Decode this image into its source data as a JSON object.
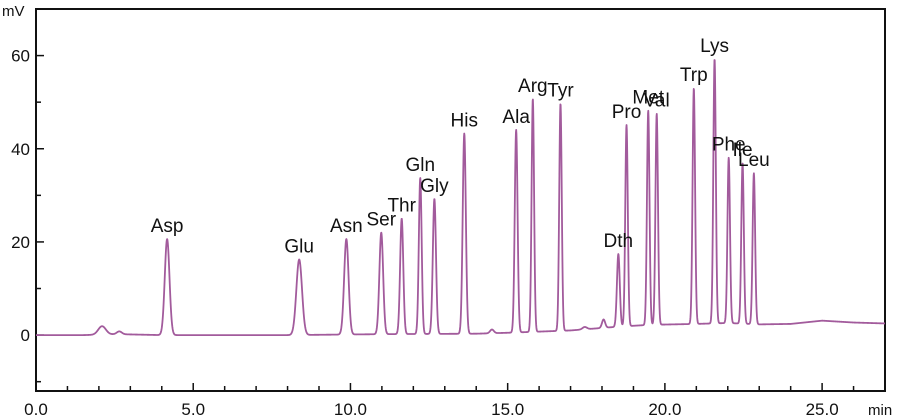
{
  "chart_data": {
    "type": "line",
    "title": "",
    "xlabel": "",
    "ylabel": "",
    "x_unit": "min",
    "y_unit": "mV",
    "xlim": [
      0,
      27.0
    ],
    "ylim": [
      -12,
      70
    ],
    "x_ticks": [
      {
        "value": 0,
        "label": "0.0"
      },
      {
        "value": 5,
        "label": "5.0"
      },
      {
        "value": 10,
        "label": "10.0"
      },
      {
        "value": 15,
        "label": "15.0"
      },
      {
        "value": 20,
        "label": "20.0"
      },
      {
        "value": 25,
        "label": "25.0"
      }
    ],
    "x_minor_step": 1,
    "y_ticks": [
      {
        "value": 0,
        "label": "0"
      },
      {
        "value": 20,
        "label": "20"
      },
      {
        "value": 40,
        "label": "40"
      },
      {
        "value": 60,
        "label": "60"
      }
    ],
    "y_minor_step": 10,
    "grid": false,
    "line_color": "#a25b9c",
    "baseline": {
      "points": [
        [
          0,
          0
        ],
        [
          1.5,
          0
        ],
        [
          2.6,
          0.2
        ],
        [
          4.0,
          0
        ],
        [
          8.0,
          0
        ],
        [
          11.0,
          0.2
        ],
        [
          14.0,
          0.3
        ],
        [
          15.0,
          0.5
        ],
        [
          17.0,
          1.0
        ],
        [
          18.5,
          1.8
        ],
        [
          19.5,
          2.2
        ],
        [
          21.0,
          2.4
        ],
        [
          22.0,
          2.6
        ],
        [
          23.0,
          2.3
        ],
        [
          24.0,
          2.4
        ],
        [
          25.0,
          3.1
        ],
        [
          26.0,
          2.7
        ],
        [
          27.0,
          2.5
        ]
      ]
    },
    "peaks": [
      {
        "name": "",
        "x": 2.1,
        "height": 1.8,
        "width": 0.12
      },
      {
        "name": "",
        "x": 2.65,
        "height": 0.6,
        "width": 0.08
      },
      {
        "name": "Asp",
        "x": 4.17,
        "height": 20.6,
        "width": 0.075
      },
      {
        "name": "Glu",
        "x": 8.37,
        "height": 16.2,
        "width": 0.09
      },
      {
        "name": "Asn",
        "x": 9.87,
        "height": 20.5,
        "width": 0.07
      },
      {
        "name": "Ser",
        "x": 10.98,
        "height": 21.8,
        "width": 0.06
      },
      {
        "name": "Thr",
        "x": 11.63,
        "height": 24.8,
        "width": 0.05
      },
      {
        "name": "Gln",
        "x": 12.22,
        "height": 33.5,
        "width": 0.045
      },
      {
        "name": "Gly",
        "x": 12.67,
        "height": 29.0,
        "width": 0.05
      },
      {
        "name": "His",
        "x": 13.62,
        "height": 43.0,
        "width": 0.05
      },
      {
        "name": "",
        "x": 14.5,
        "height": 0.8,
        "width": 0.06
      },
      {
        "name": "Ala",
        "x": 15.27,
        "height": 43.5,
        "width": 0.045
      },
      {
        "name": "Arg",
        "x": 15.8,
        "height": 50.0,
        "width": 0.04
      },
      {
        "name": "Tyr",
        "x": 16.68,
        "height": 48.8,
        "width": 0.04
      },
      {
        "name": "",
        "x": 17.45,
        "height": 0.5,
        "width": 0.07
      },
      {
        "name": "",
        "x": 18.05,
        "height": 1.8,
        "width": 0.05
      },
      {
        "name": "Dth",
        "x": 18.52,
        "height": 15.6,
        "width": 0.045
      },
      {
        "name": "Pro",
        "x": 18.78,
        "height": 43.2,
        "width": 0.04
      },
      {
        "name": "Met",
        "x": 19.47,
        "height": 46.0,
        "width": 0.04
      },
      {
        "name": "Val",
        "x": 19.74,
        "height": 45.3,
        "width": 0.04
      },
      {
        "name": "Trp",
        "x": 20.92,
        "height": 50.6,
        "width": 0.04
      },
      {
        "name": "Lys",
        "x": 21.58,
        "height": 56.8,
        "width": 0.04
      },
      {
        "name": "Phe",
        "x": 22.03,
        "height": 35.5,
        "width": 0.04
      },
      {
        "name": "Ile",
        "x": 22.47,
        "height": 34.5,
        "width": 0.04
      },
      {
        "name": "Leu",
        "x": 22.83,
        "height": 32.4,
        "width": 0.04
      }
    ]
  }
}
